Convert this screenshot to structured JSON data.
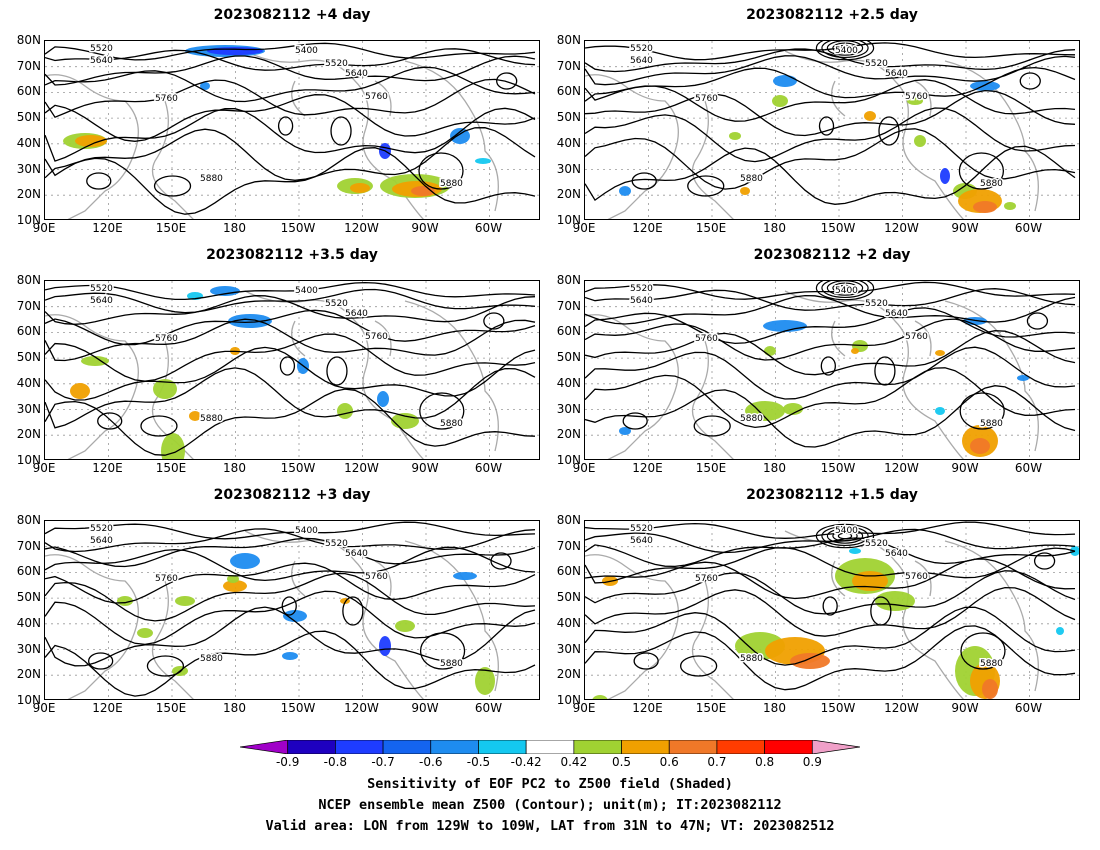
{
  "panels": [
    {
      "title": "2023082112 +4 day"
    },
    {
      "title": "2023082112 +2.5 day"
    },
    {
      "title": "2023082112 +3.5 day"
    },
    {
      "title": "2023082112 +2 day"
    },
    {
      "title": "2023082112 +3 day"
    },
    {
      "title": "2023082112 +1.5 day"
    }
  ],
  "axes": {
    "lat_labels": [
      "80N",
      "70N",
      "60N",
      "50N",
      "40N",
      "30N",
      "20N",
      "10N"
    ],
    "lon_labels": [
      "90E",
      "120E",
      "150E",
      "180",
      "150W",
      "120W",
      "90W",
      "60W"
    ]
  },
  "contour_labels": [
    "5400",
    "5520",
    "5640",
    "5760",
    "5880"
  ],
  "colorbar": {
    "labels": [
      "-0.9",
      "-0.8",
      "-0.7",
      "-0.6",
      "-0.5",
      "-0.42",
      "0.42",
      "0.5",
      "0.6",
      "0.7",
      "0.8",
      "0.9"
    ],
    "colors": [
      "#a000c8",
      "#1e00c0",
      "#1e3cff",
      "#1464f0",
      "#1e8cf0",
      "#14c8f0",
      "#ffffff",
      "#a0d232",
      "#f0a000",
      "#f07828",
      "#ff3c00",
      "#ff0000",
      "#f0a0c8"
    ]
  },
  "caption": {
    "line1": "Sensitivity of EOF PC2 to Z500 field (Shaded)",
    "line2": "NCEP ensemble mean Z500 (Contour); unit(m); IT:2023082112",
    "line3": "Valid area: LON from 129W to 109W, LAT from 31N to 47N; VT: 2023082512"
  }
}
